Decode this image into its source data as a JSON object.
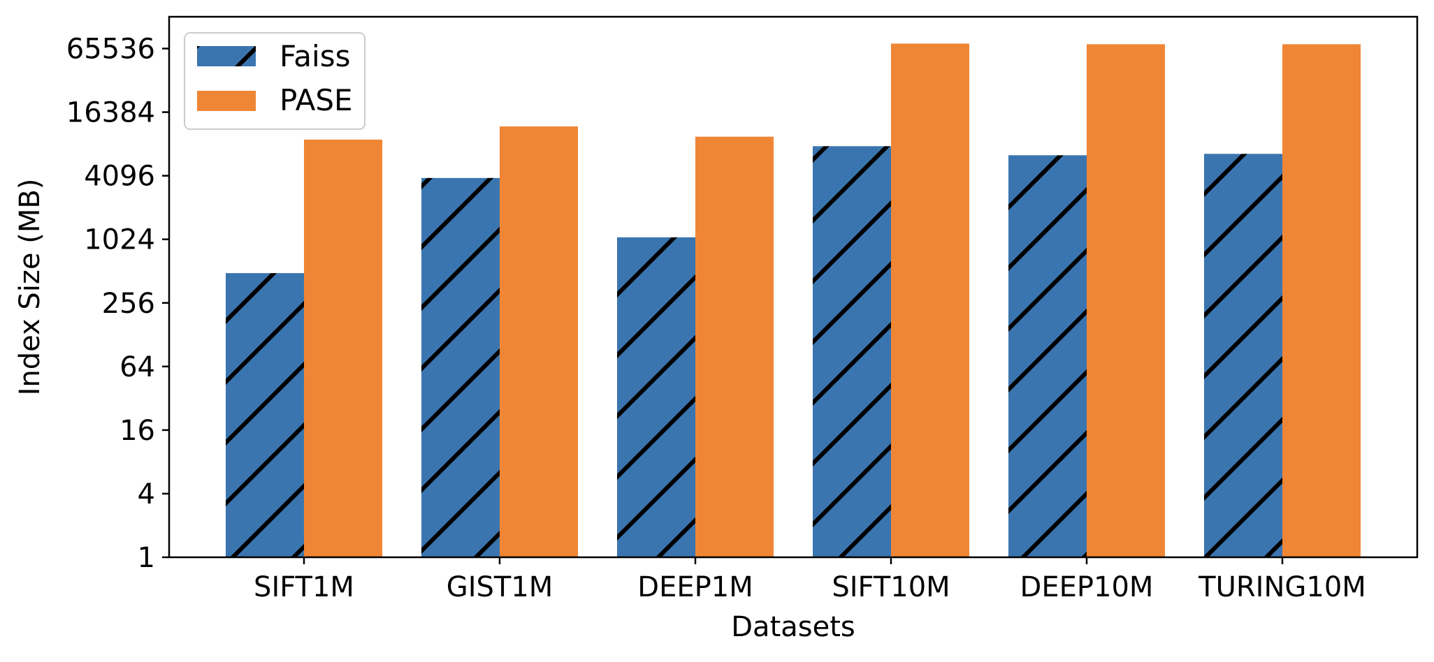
{
  "chart_data": {
    "type": "bar",
    "title": "",
    "xlabel": "Datasets",
    "ylabel": "Index Size (MB)",
    "yscale": "log2",
    "ylim": [
      1,
      131072
    ],
    "yticks": [
      1,
      4,
      16,
      64,
      256,
      1024,
      4096,
      16384,
      65536
    ],
    "ytick_labels": [
      "1",
      "4",
      "16",
      "64",
      "256",
      "1024",
      "4096",
      "16384",
      "65536"
    ],
    "categories": [
      "SIFT1M",
      "GIST1M",
      "DEEP1M",
      "SIFT10M",
      "DEEP10M",
      "TURING10M"
    ],
    "series": [
      {
        "name": "Faiss",
        "color": "#3b75af",
        "hatch": "diagonal",
        "values": [
          490,
          3900,
          1070,
          7800,
          6400,
          6600
        ]
      },
      {
        "name": "PASE",
        "color": "#ef8636",
        "hatch": "none",
        "values": [
          9000,
          12000,
          9600,
          73000,
          72000,
          72000
        ]
      }
    ],
    "legend_position": "top-left",
    "grid": false
  }
}
